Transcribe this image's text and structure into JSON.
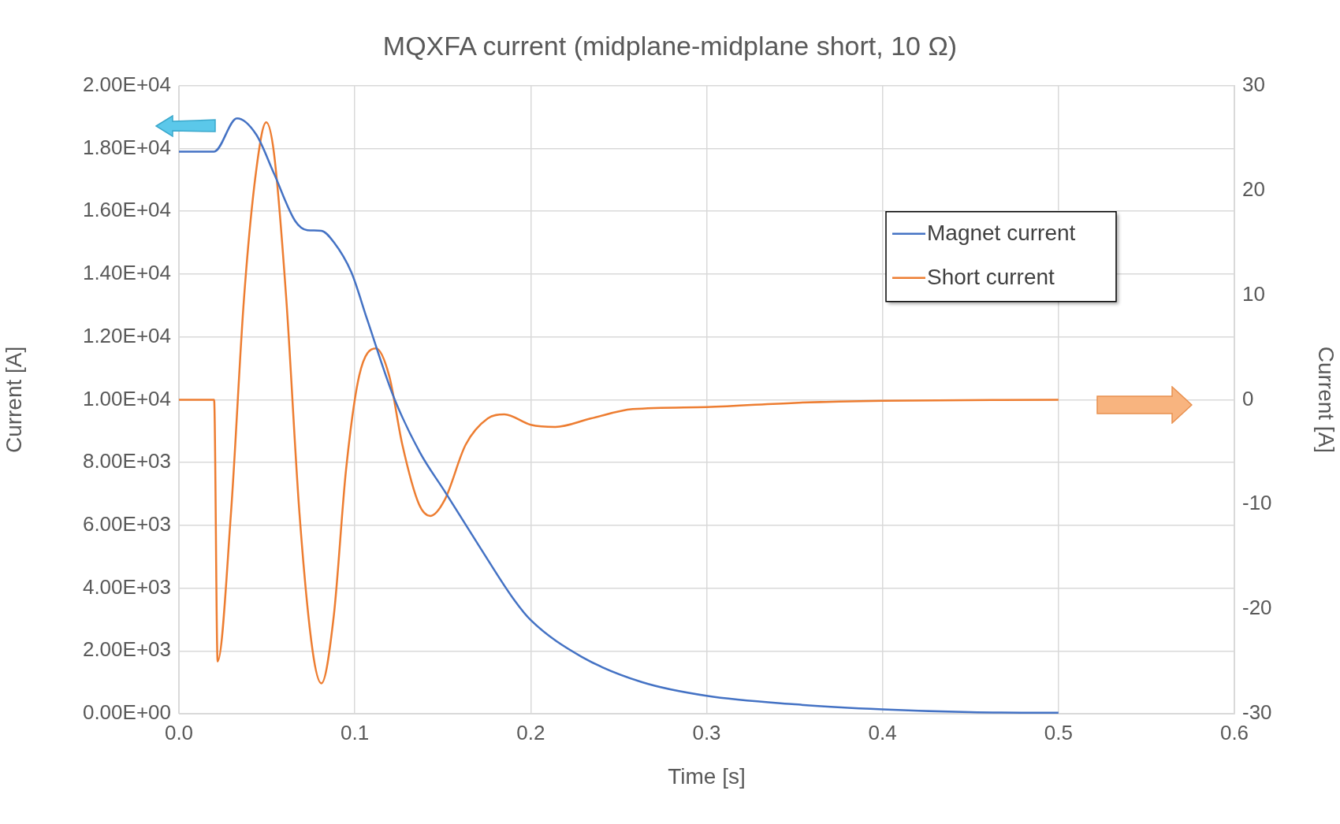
{
  "chart_data": {
    "type": "line",
    "title": "MQXFA current (midplane-midplane short, 10 Ω)",
    "xlabel": "Time [s]",
    "ylabel": "Current [A]",
    "y2label": "Current [A]",
    "xlim": [
      0,
      0.6
    ],
    "xticks": [
      {
        "value": 0,
        "label": "0.0"
      },
      {
        "value": 0.1,
        "label": "0.1"
      },
      {
        "value": 0.2,
        "label": "0.2"
      },
      {
        "value": 0.3,
        "label": "0.3"
      },
      {
        "value": 0.4,
        "label": "0.4"
      },
      {
        "value": 0.5,
        "label": "0.5"
      },
      {
        "value": 0.6,
        "label": "0.6"
      }
    ],
    "ylim": [
      0,
      20000
    ],
    "yticks": [
      {
        "value": 0,
        "label": "0.00E+00"
      },
      {
        "value": 2000,
        "label": "2.00E+03"
      },
      {
        "value": 4000,
        "label": "4.00E+03"
      },
      {
        "value": 6000,
        "label": "6.00E+03"
      },
      {
        "value": 8000,
        "label": "8.00E+03"
      },
      {
        "value": 10000,
        "label": "1.00E+04"
      },
      {
        "value": 12000,
        "label": "1.20E+04"
      },
      {
        "value": 14000,
        "label": "1.40E+04"
      },
      {
        "value": 16000,
        "label": "1.60E+04"
      },
      {
        "value": 18000,
        "label": "1.80E+04"
      },
      {
        "value": 20000,
        "label": "2.00E+04"
      }
    ],
    "y2lim": [
      -30,
      30
    ],
    "y2ticks": [
      -30,
      -20,
      -10,
      0,
      10,
      20,
      30
    ],
    "grid": true,
    "legend": "top right",
    "marker": "none",
    "line_style": "solid",
    "series": [
      {
        "name": "Magnet current",
        "color": "#4472c4",
        "x": [
          0,
          0.02,
          0.033,
          0.044,
          0.054,
          0.066,
          0.073,
          0.081,
          0.088,
          0.098,
          0.107,
          0.122,
          0.137,
          0.151,
          0.171,
          0.19,
          0.2,
          0.229,
          0.263,
          0.3,
          0.35,
          0.4,
          0.45,
          0.5
        ],
        "values": [
          17900,
          17900,
          18960,
          18440,
          17210,
          15700,
          15400,
          15380,
          15020,
          14060,
          12560,
          10100,
          8320,
          7090,
          5310,
          3670,
          2980,
          1810,
          1010,
          570,
          300,
          140,
          50,
          30
        ]
      },
      {
        "name": "Short current",
        "color": "#ed7d31",
        "axis": "y2",
        "x": [
          0,
          0.02,
          0.022,
          0.0296,
          0.037,
          0.044,
          0.0496,
          0.054,
          0.061,
          0.0685,
          0.076,
          0.081,
          0.088,
          0.095,
          0.1025,
          0.112,
          0.1195,
          0.127,
          0.1365,
          0.143,
          0.151,
          0.163,
          0.1755,
          0.185,
          0.2,
          0.214,
          0.234,
          0.258,
          0.3,
          0.35,
          0.4,
          0.5
        ],
        "values": [
          0,
          0,
          -25,
          -10.8,
          9.7,
          22,
          26.5,
          23.6,
          9.7,
          -10.8,
          -24,
          -27.1,
          -20.7,
          -6.7,
          2.3,
          4.9,
          2.3,
          -4.3,
          -10,
          -11.1,
          -9.6,
          -4.3,
          -1.8,
          -1.4,
          -2.4,
          -2.6,
          -1.8,
          -0.9,
          -0.7,
          -0.3,
          -0.1,
          0
        ]
      }
    ]
  }
}
